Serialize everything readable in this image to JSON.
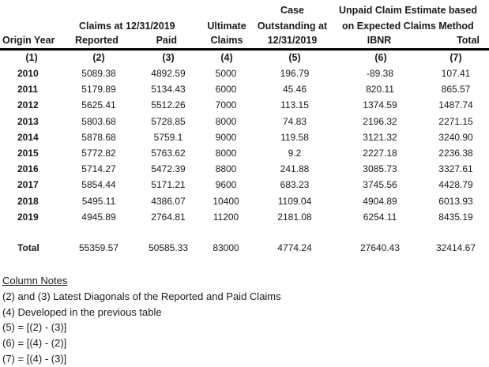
{
  "table": {
    "headers": {
      "origin_year": "Origin Year",
      "claims_group": "Claims at 12/31/2019",
      "reported": "Reported",
      "paid": "Paid",
      "ultimate_line1": "Ultimate",
      "ultimate_line2": "Claims",
      "case_line1": "Case",
      "case_line2": "Outstanding at",
      "case_line3": "12/31/2019",
      "unpaid_line1": "Unpaid Claim Estimate based",
      "unpaid_line2": "on Expected Claims Method",
      "ibnr": "IBNR",
      "total": "Total"
    },
    "column_numbers": [
      "(1)",
      "(2)",
      "(3)",
      "(4)",
      "(5)",
      "(6)",
      "(7)"
    ],
    "rows": [
      {
        "year": "2010",
        "reported": "5089.38",
        "paid": "4892.59",
        "ultimate": "5000",
        "case": "196.79",
        "ibnr": "-89.38",
        "total": "107.41"
      },
      {
        "year": "2011",
        "reported": "5179.89",
        "paid": "5134.43",
        "ultimate": "6000",
        "case": "45.46",
        "ibnr": "820.11",
        "total": "865.57"
      },
      {
        "year": "2012",
        "reported": "5625.41",
        "paid": "5512.26",
        "ultimate": "7000",
        "case": "113.15",
        "ibnr": "1374.59",
        "total": "1487.74"
      },
      {
        "year": "2013",
        "reported": "5803.68",
        "paid": "5728.85",
        "ultimate": "8000",
        "case": "74.83",
        "ibnr": "2196.32",
        "total": "2271.15"
      },
      {
        "year": "2014",
        "reported": "5878.68",
        "paid": "5759.1",
        "ultimate": "9000",
        "case": "119.58",
        "ibnr": "3121.32",
        "total": "3240.90"
      },
      {
        "year": "2015",
        "reported": "5772.82",
        "paid": "5763.62",
        "ultimate": "8000",
        "case": "9.2",
        "ibnr": "2227.18",
        "total": "2236.38"
      },
      {
        "year": "2016",
        "reported": "5714.27",
        "paid": "5472.39",
        "ultimate": "8800",
        "case": "241.88",
        "ibnr": "3085.73",
        "total": "3327.61"
      },
      {
        "year": "2017",
        "reported": "5854.44",
        "paid": "5171.21",
        "ultimate": "9600",
        "case": "683.23",
        "ibnr": "3745.56",
        "total": "4428.79"
      },
      {
        "year": "2018",
        "reported": "5495.11",
        "paid": "4386.07",
        "ultimate": "10400",
        "case": "1109.04",
        "ibnr": "4904.89",
        "total": "6013.93"
      },
      {
        "year": "2019",
        "reported": "4945.89",
        "paid": "2764.81",
        "ultimate": "11200",
        "case": "2181.08",
        "ibnr": "6254.11",
        "total": "8435.19"
      }
    ],
    "totals": {
      "label": "Total",
      "reported": "55359.57",
      "paid": "50585.33",
      "ultimate": "83000",
      "case": "4774.24",
      "ibnr": "27640.43",
      "total": "32414.67"
    }
  },
  "notes": {
    "title": "Column Notes",
    "lines": [
      "(2) and (3) Latest Diagonals of the Reported and Paid Claims",
      "(4) Developed in the previous table",
      "(5) = [(2) - (3)]",
      "(6) = [(4) - (2)]",
      "(7) = [(4) - (3)]"
    ]
  }
}
